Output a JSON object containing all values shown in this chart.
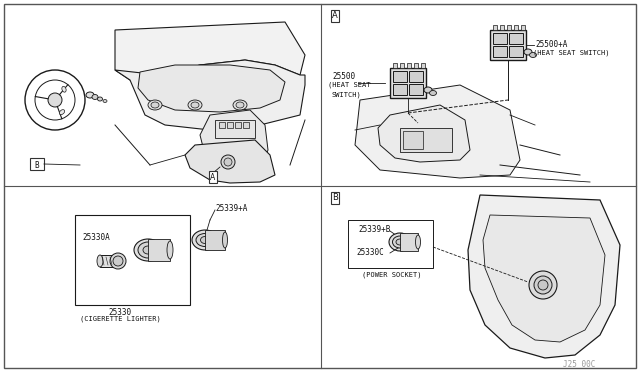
{
  "bg_color": "#ffffff",
  "line_color": "#1a1a1a",
  "border_color": "#444444",
  "part_number_color": "#111111",
  "fig_width": 6.4,
  "fig_height": 3.72,
  "dpi": 100,
  "watermark": "J25 00C",
  "panel_A_label": "A",
  "panel_B_label": "B",
  "label_25500": "25500",
  "label_25500_sub": "(HEAT SEAT\nSWITCH)",
  "label_25500A": "25500+A",
  "label_25500A_sub": "(HEAT SEAT SWITCH)",
  "label_25339A": "25339+A",
  "label_25330A": "25330A",
  "label_25330": "25330",
  "label_25330_sub": "(CIGERETTE LIGHTER)",
  "label_25339B": "25339+B",
  "label_25330C": "25330C",
  "label_25330C_sub": "(POWER SOCKET)"
}
